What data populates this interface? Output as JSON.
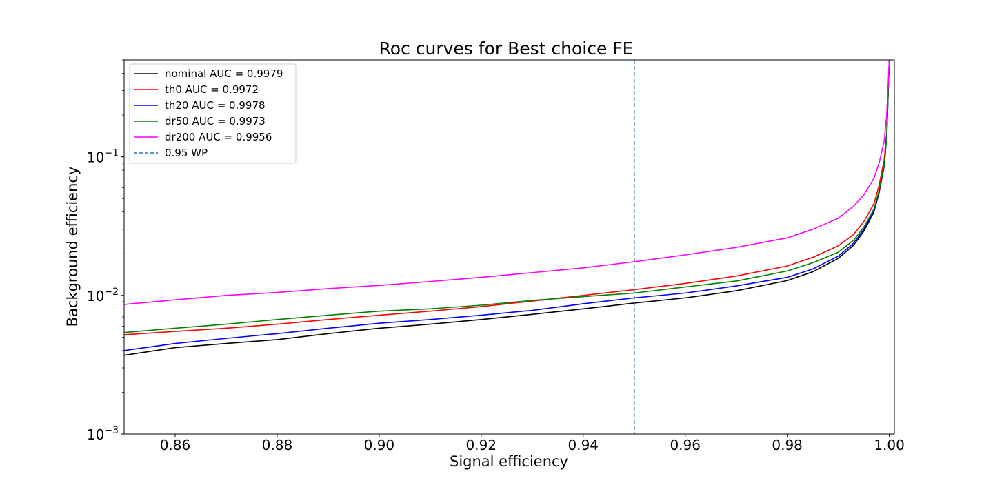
{
  "chart_data": {
    "type": "line",
    "title": "Roc curves for Best choice FE",
    "xlabel": "Signal efficiency",
    "ylabel": "Background efficiency",
    "xlim": [
      0.85,
      1.001
    ],
    "ylim": [
      0.001,
      0.5
    ],
    "yscale": "log",
    "grid": false,
    "legend_position": "upper-left",
    "x_ticks": [
      0.86,
      0.88,
      0.9,
      0.92,
      0.94,
      0.96,
      0.98,
      1.0
    ],
    "x_tick_labels": [
      "0.86",
      "0.88",
      "0.90",
      "0.92",
      "0.94",
      "0.96",
      "0.98",
      "1.00"
    ],
    "y_ticks": [
      0.001,
      0.01,
      0.1
    ],
    "y_tick_labels": [
      {
        "base": "10",
        "exp": "−3"
      },
      {
        "base": "10",
        "exp": "−2"
      },
      {
        "base": "10",
        "exp": "−1"
      }
    ],
    "series": [
      {
        "name": "nominal AUC = 0.9979",
        "color": "#000000",
        "x": [
          0.85,
          0.86,
          0.87,
          0.88,
          0.89,
          0.9,
          0.91,
          0.92,
          0.93,
          0.94,
          0.95,
          0.96,
          0.97,
          0.98,
          0.985,
          0.99,
          0.993,
          0.995,
          0.997,
          0.998,
          0.999,
          0.9995,
          1.0
        ],
        "y": [
          0.0037,
          0.0042,
          0.0045,
          0.0048,
          0.0053,
          0.0058,
          0.0062,
          0.0067,
          0.0073,
          0.008,
          0.0088,
          0.0096,
          0.0108,
          0.0128,
          0.0148,
          0.0185,
          0.023,
          0.029,
          0.04,
          0.055,
          0.085,
          0.14,
          0.5
        ]
      },
      {
        "name": "th0 AUC = 0.9972",
        "color": "#ff0000",
        "x": [
          0.85,
          0.86,
          0.87,
          0.88,
          0.89,
          0.9,
          0.91,
          0.92,
          0.93,
          0.94,
          0.95,
          0.96,
          0.97,
          0.98,
          0.985,
          0.99,
          0.993,
          0.995,
          0.997,
          0.998,
          0.999,
          0.9995,
          1.0
        ],
        "y": [
          0.0052,
          0.0055,
          0.0058,
          0.0062,
          0.0067,
          0.0072,
          0.0077,
          0.0083,
          0.0091,
          0.01,
          0.011,
          0.0122,
          0.0138,
          0.0163,
          0.0188,
          0.0228,
          0.0275,
          0.034,
          0.046,
          0.062,
          0.095,
          0.15,
          0.5
        ]
      },
      {
        "name": "th20 AUC = 0.9978",
        "color": "#0000ff",
        "x": [
          0.85,
          0.86,
          0.87,
          0.88,
          0.89,
          0.9,
          0.91,
          0.92,
          0.93,
          0.94,
          0.95,
          0.96,
          0.97,
          0.98,
          0.985,
          0.99,
          0.993,
          0.995,
          0.997,
          0.998,
          0.999,
          0.9995,
          1.0
        ],
        "y": [
          0.004,
          0.0045,
          0.0049,
          0.0053,
          0.0058,
          0.0063,
          0.0067,
          0.0072,
          0.0078,
          0.0087,
          0.0096,
          0.0104,
          0.0117,
          0.0135,
          0.0155,
          0.0192,
          0.0238,
          0.03,
          0.041,
          0.056,
          0.086,
          0.14,
          0.5
        ]
      },
      {
        "name": "dr50 AUC = 0.9973",
        "color": "#008000",
        "x": [
          0.85,
          0.86,
          0.87,
          0.88,
          0.89,
          0.9,
          0.91,
          0.92,
          0.93,
          0.94,
          0.95,
          0.96,
          0.97,
          0.98,
          0.985,
          0.99,
          0.993,
          0.995,
          0.997,
          0.998,
          0.999,
          0.9995,
          1.0
        ],
        "y": [
          0.0054,
          0.0058,
          0.0062,
          0.0067,
          0.0072,
          0.0077,
          0.008,
          0.0085,
          0.0092,
          0.0098,
          0.0104,
          0.0115,
          0.0127,
          0.015,
          0.0172,
          0.0205,
          0.025,
          0.031,
          0.042,
          0.057,
          0.087,
          0.14,
          0.5
        ]
      },
      {
        "name": "dr200 AUC = 0.9956",
        "color": "#ff00ff",
        "x": [
          0.85,
          0.86,
          0.87,
          0.88,
          0.89,
          0.9,
          0.91,
          0.92,
          0.93,
          0.94,
          0.95,
          0.96,
          0.97,
          0.98,
          0.985,
          0.99,
          0.993,
          0.995,
          0.997,
          0.998,
          0.999,
          0.9995,
          1.0
        ],
        "y": [
          0.0086,
          0.0093,
          0.01,
          0.0105,
          0.0112,
          0.0118,
          0.0126,
          0.0135,
          0.0146,
          0.0158,
          0.0175,
          0.0196,
          0.0222,
          0.026,
          0.03,
          0.036,
          0.044,
          0.053,
          0.07,
          0.09,
          0.13,
          0.2,
          0.5
        ]
      }
    ],
    "reference_lines": [
      {
        "name": "0.95 WP",
        "x": 0.95,
        "color": "#1f77b4",
        "style": "dashed"
      }
    ]
  }
}
